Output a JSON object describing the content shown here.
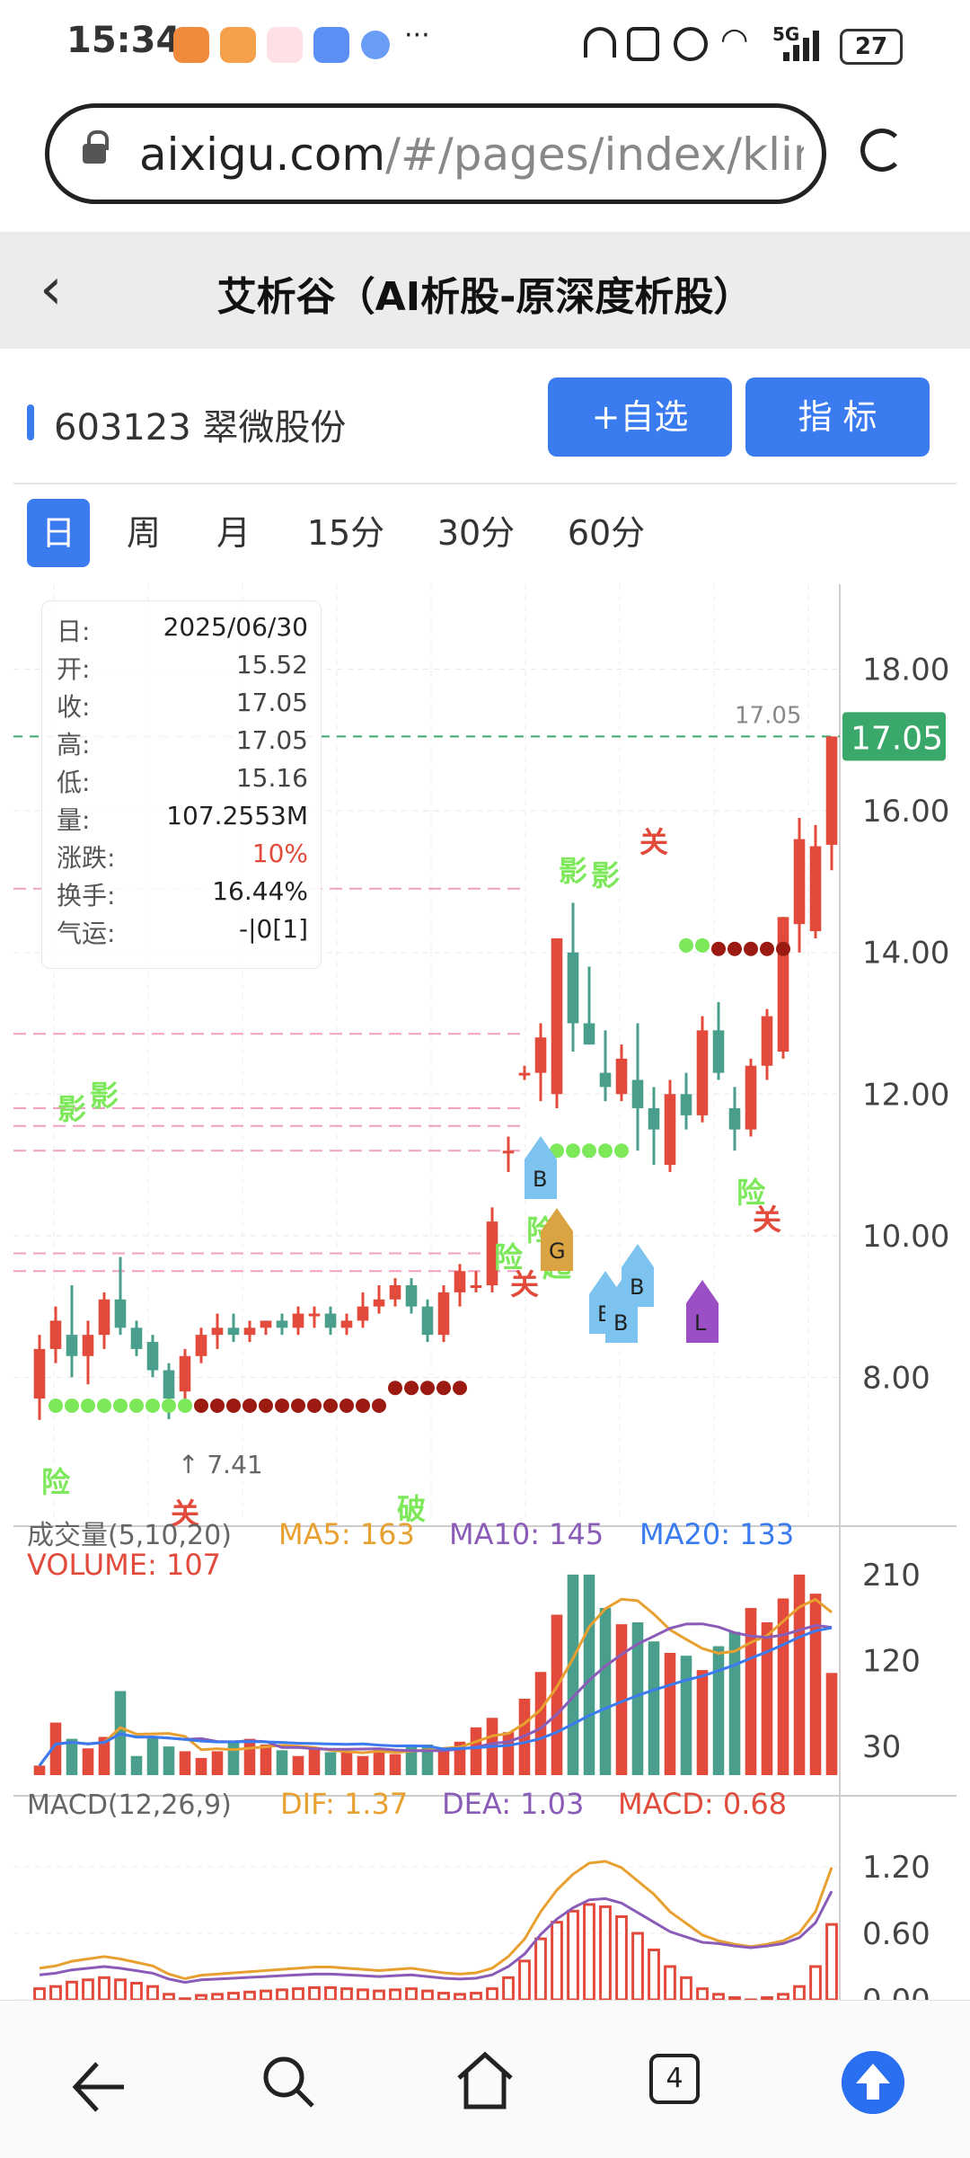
{
  "status_bar": {
    "time": "15:34",
    "dots": "···",
    "network": "5G",
    "battery": "27",
    "app_icons": [
      "orange-heart-app-icon",
      "orange-play-app-icon",
      "music-app-icon",
      "chat-app-icon",
      "globe-app-icon"
    ],
    "system_icons": [
      "headphones-icon",
      "nfc-icon",
      "alarm-icon",
      "wifi-icon",
      "signal-icon",
      "battery-icon"
    ]
  },
  "browser": {
    "url_host": "aixigu.com",
    "url_path": "/#/pages/index/kline?"
  },
  "header": {
    "title": "艾析谷（AI析股-原深度析股）"
  },
  "stock": {
    "code_name": "603123 翠微股份",
    "add_watch_label": "+自选",
    "indicator_label": "指  标"
  },
  "period_tabs": [
    "日",
    "周",
    "月",
    "15分",
    "30分",
    "60分"
  ],
  "info_box": {
    "rows": [
      {
        "k": "日:",
        "v": "2025/06/30"
      },
      {
        "k": "开:",
        "v": "15.52"
      },
      {
        "k": "收:",
        "v": "17.05"
      },
      {
        "k": "高:",
        "v": "17.05"
      },
      {
        "k": "低:",
        "v": "15.16"
      },
      {
        "k": "量:",
        "v": "107.2553M"
      },
      {
        "k": "涨跌:",
        "v": "10%"
      },
      {
        "k": "换手:",
        "v": "16.44%"
      },
      {
        "k": "气运:",
        "v": "-|0[1]"
      }
    ]
  },
  "chart_data": [
    {
      "type": "candlestick",
      "y_axis_ticks": [
        "18.00",
        "16.00",
        "14.00",
        "12.00",
        "10.00",
        "8.00"
      ],
      "ylim": [
        6.0,
        19.2
      ],
      "last_price_tag": "17.05",
      "last_price_marker": "17.05",
      "low_marker": "7.41",
      "annotations": [
        "影",
        "影",
        "险",
        "关",
        "破",
        "险",
        "关",
        "B",
        "险",
        "G",
        "起",
        "影",
        "影",
        "B",
        "B",
        "B",
        "L",
        "关",
        "险",
        "关"
      ],
      "candles": [
        {
          "o": 7.7,
          "h": 8.6,
          "l": 7.4,
          "c": 8.4
        },
        {
          "o": 8.4,
          "h": 9.0,
          "l": 8.2,
          "c": 8.8
        },
        {
          "o": 8.6,
          "h": 9.3,
          "l": 8.0,
          "c": 8.3
        },
        {
          "o": 8.3,
          "h": 8.8,
          "l": 7.9,
          "c": 8.6
        },
        {
          "o": 8.6,
          "h": 9.2,
          "l": 8.4,
          "c": 9.1
        },
        {
          "o": 9.1,
          "h": 9.7,
          "l": 8.6,
          "c": 8.7
        },
        {
          "o": 8.7,
          "h": 8.8,
          "l": 8.3,
          "c": 8.4
        },
        {
          "o": 8.5,
          "h": 8.6,
          "l": 8.0,
          "c": 8.1
        },
        {
          "o": 8.1,
          "h": 8.2,
          "l": 7.41,
          "c": 7.7
        },
        {
          "o": 7.8,
          "h": 8.4,
          "l": 7.7,
          "c": 8.3
        },
        {
          "o": 8.3,
          "h": 8.7,
          "l": 8.2,
          "c": 8.6
        },
        {
          "o": 8.6,
          "h": 8.9,
          "l": 8.4,
          "c": 8.7
        },
        {
          "o": 8.7,
          "h": 8.9,
          "l": 8.5,
          "c": 8.6
        },
        {
          "o": 8.6,
          "h": 8.8,
          "l": 8.5,
          "c": 8.7
        },
        {
          "o": 8.7,
          "h": 8.8,
          "l": 8.6,
          "c": 8.8
        },
        {
          "o": 8.8,
          "h": 8.9,
          "l": 8.6,
          "c": 8.7
        },
        {
          "o": 8.7,
          "h": 9.0,
          "l": 8.6,
          "c": 8.9
        },
        {
          "o": 8.9,
          "h": 9.0,
          "l": 8.7,
          "c": 8.9
        },
        {
          "o": 8.9,
          "h": 9.0,
          "l": 8.6,
          "c": 8.7
        },
        {
          "o": 8.7,
          "h": 8.9,
          "l": 8.6,
          "c": 8.8
        },
        {
          "o": 8.8,
          "h": 9.2,
          "l": 8.7,
          "c": 9.0
        },
        {
          "o": 9.0,
          "h": 9.3,
          "l": 8.9,
          "c": 9.1
        },
        {
          "o": 9.1,
          "h": 9.4,
          "l": 9.0,
          "c": 9.3
        },
        {
          "o": 9.3,
          "h": 9.4,
          "l": 8.9,
          "c": 9.0
        },
        {
          "o": 9.0,
          "h": 9.1,
          "l": 8.5,
          "c": 8.6
        },
        {
          "o": 8.6,
          "h": 9.3,
          "l": 8.5,
          "c": 9.2
        },
        {
          "o": 9.2,
          "h": 9.6,
          "l": 9.0,
          "c": 9.5
        },
        {
          "o": 9.3,
          "h": 9.5,
          "l": 9.2,
          "c": 9.3
        },
        {
          "o": 9.3,
          "h": 10.4,
          "l": 9.2,
          "c": 10.2
        },
        {
          "o": 11.2,
          "h": 11.4,
          "l": 10.9,
          "c": 11.2
        },
        {
          "o": 12.3,
          "h": 12.4,
          "l": 12.2,
          "c": 12.3
        },
        {
          "o": 12.3,
          "h": 13.0,
          "l": 11.9,
          "c": 12.8
        },
        {
          "o": 12.0,
          "h": 14.2,
          "l": 11.8,
          "c": 14.2
        },
        {
          "o": 14.0,
          "h": 14.7,
          "l": 12.6,
          "c": 13.0
        },
        {
          "o": 13.0,
          "h": 13.8,
          "l": 12.7,
          "c": 12.7
        },
        {
          "o": 12.3,
          "h": 12.9,
          "l": 11.9,
          "c": 12.1
        },
        {
          "o": 12.0,
          "h": 12.7,
          "l": 11.9,
          "c": 12.5
        },
        {
          "o": 12.2,
          "h": 13.0,
          "l": 11.2,
          "c": 11.8
        },
        {
          "o": 11.8,
          "h": 12.1,
          "l": 11.0,
          "c": 11.5
        },
        {
          "o": 11.0,
          "h": 12.2,
          "l": 10.9,
          "c": 12.0
        },
        {
          "o": 12.0,
          "h": 12.3,
          "l": 11.5,
          "c": 11.7
        },
        {
          "o": 11.7,
          "h": 13.1,
          "l": 11.6,
          "c": 12.9
        },
        {
          "o": 12.9,
          "h": 13.3,
          "l": 12.2,
          "c": 12.3
        },
        {
          "o": 11.8,
          "h": 12.1,
          "l": 11.2,
          "c": 11.5
        },
        {
          "o": 11.5,
          "h": 12.5,
          "l": 11.4,
          "c": 12.4
        },
        {
          "o": 12.4,
          "h": 13.2,
          "l": 12.2,
          "c": 13.1
        },
        {
          "o": 12.6,
          "h": 14.5,
          "l": 12.5,
          "c": 14.5
        },
        {
          "o": 14.4,
          "h": 15.9,
          "l": 14.0,
          "c": 15.6
        },
        {
          "o": 14.3,
          "h": 15.8,
          "l": 14.2,
          "c": 15.5
        },
        {
          "o": 15.52,
          "h": 17.05,
          "l": 15.16,
          "c": 17.05
        }
      ]
    },
    {
      "type": "bar",
      "title": "成交量(5,10,20)",
      "ma5": "MA5: 163",
      "ma10": "MA10: 145",
      "ma20": "MA20: 133",
      "volume_label": "VOLUME: 107",
      "y_axis_ticks": [
        "210",
        "120",
        "30"
      ],
      "values": [
        10,
        55,
        38,
        28,
        40,
        88,
        20,
        40,
        30,
        25,
        18,
        25,
        35,
        38,
        32,
        26,
        20,
        28,
        24,
        25,
        20,
        28,
        22,
        30,
        32,
        28,
        35,
        50,
        60,
        45,
        80,
        108,
        168,
        210,
        210,
        175,
        158,
        160,
        140,
        128,
        125,
        110,
        135,
        150,
        175,
        160,
        185,
        210,
        190,
        107
      ],
      "ma_lines": {
        "MA5": [],
        "MA10": [],
        "MA20": []
      }
    },
    {
      "type": "bar",
      "title": "MACD(12,26,9)",
      "dif_label": "DIF: 1.37",
      "dea_label": "DEA: 1.03",
      "macd_label": "MACD: 0.68",
      "y_axis_ticks": [
        "1.20",
        "0.60",
        "0.00"
      ],
      "values": [
        0.1,
        0.12,
        0.16,
        0.18,
        0.2,
        0.18,
        0.15,
        0.12,
        0.05,
        0.01,
        0.04,
        0.05,
        0.06,
        0.07,
        0.08,
        0.09,
        0.1,
        0.11,
        0.11,
        0.1,
        0.09,
        0.08,
        0.09,
        0.1,
        0.08,
        0.06,
        0.05,
        0.06,
        0.1,
        0.2,
        0.35,
        0.55,
        0.7,
        0.8,
        0.86,
        0.84,
        0.75,
        0.6,
        0.45,
        0.3,
        0.2,
        0.1,
        0.05,
        0.02,
        0.0,
        0.02,
        0.05,
        0.12,
        0.3,
        0.68
      ]
    }
  ],
  "bottom_nav": {
    "tabs_count": "4",
    "icons": [
      "back-arrow-icon",
      "search-icon",
      "home-icon",
      "tabs-icon",
      "scroll-up-icon"
    ]
  }
}
